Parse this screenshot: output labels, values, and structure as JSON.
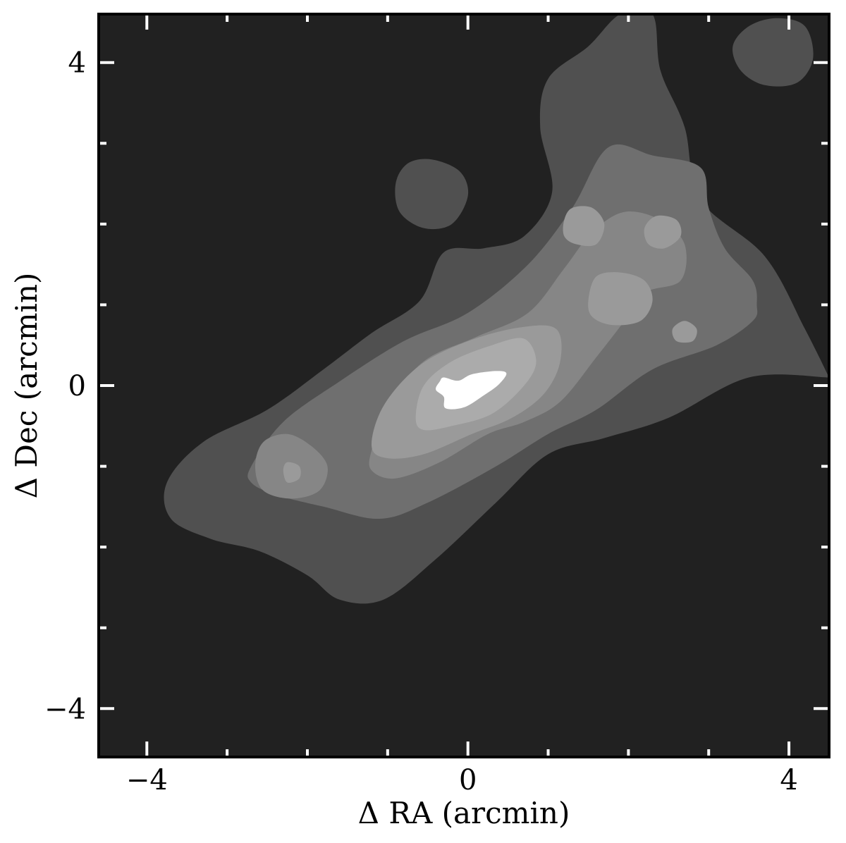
{
  "chart_data": {
    "type": "contour",
    "xlabel": "Δ RA (arcmin)",
    "ylabel": "Δ Dec (arcmin)",
    "xlim": [
      -4.6,
      4.5
    ],
    "ylim": [
      -4.6,
      4.6
    ],
    "x_major_ticks": [
      -4,
      0,
      4
    ],
    "x_major_tick_labels": [
      "−4",
      "0",
      "4"
    ],
    "y_major_ticks": [
      -4,
      0,
      4
    ],
    "y_major_tick_labels": [
      "−4",
      "0",
      "4"
    ],
    "minor_tick_step": 1,
    "grid": false,
    "background_color": "#212121",
    "level_colors": [
      "#212121",
      "#505050",
      "#6f6f6f",
      "#868686",
      "#9a9a9a",
      "#ababab",
      "#ffffff"
    ],
    "regions": [
      {
        "level": 1,
        "points": [
          [
            -3.75,
            -1.2
          ],
          [
            -3.3,
            -0.7
          ],
          [
            -2.5,
            -0.3
          ],
          [
            -1.8,
            0.2
          ],
          [
            -1.2,
            0.65
          ],
          [
            -0.6,
            1.05
          ],
          [
            -0.3,
            1.65
          ],
          [
            0.2,
            1.7
          ],
          [
            0.7,
            1.85
          ],
          [
            1.05,
            2.4
          ],
          [
            0.9,
            3.2
          ],
          [
            1.0,
            3.8
          ],
          [
            1.5,
            4.2
          ],
          [
            1.9,
            4.6
          ],
          [
            2.3,
            4.6
          ],
          [
            2.4,
            3.9
          ],
          [
            2.7,
            3.2
          ],
          [
            2.9,
            2.3
          ],
          [
            3.7,
            1.6
          ],
          [
            4.2,
            0.7
          ],
          [
            4.5,
            0.1
          ],
          [
            4.5,
            0.1
          ],
          [
            3.5,
            0.1
          ],
          [
            2.5,
            -0.4
          ],
          [
            1.7,
            -0.65
          ],
          [
            1.0,
            -0.85
          ],
          [
            0.35,
            -1.45
          ],
          [
            -0.4,
            -2.15
          ],
          [
            -1.05,
            -2.65
          ],
          [
            -1.6,
            -2.65
          ],
          [
            -2.0,
            -2.35
          ],
          [
            -2.6,
            -2.05
          ],
          [
            -3.2,
            -1.9
          ],
          [
            -3.7,
            -1.65
          ]
        ]
      },
      {
        "level": 1,
        "points": [
          [
            -0.9,
            2.5
          ],
          [
            -0.75,
            2.75
          ],
          [
            -0.45,
            2.8
          ],
          [
            -0.1,
            2.65
          ],
          [
            0.0,
            2.35
          ],
          [
            -0.2,
            2.0
          ],
          [
            -0.55,
            1.95
          ],
          [
            -0.85,
            2.15
          ]
        ]
      },
      {
        "level": 1,
        "points": [
          [
            3.3,
            4.2
          ],
          [
            3.5,
            4.45
          ],
          [
            3.85,
            4.55
          ],
          [
            4.2,
            4.45
          ],
          [
            4.3,
            4.05
          ],
          [
            4.1,
            3.75
          ],
          [
            3.7,
            3.72
          ],
          [
            3.4,
            3.9
          ]
        ]
      },
      {
        "level": 2,
        "points": [
          [
            -2.7,
            -1.0
          ],
          [
            -2.3,
            -0.45
          ],
          [
            -1.6,
            0.05
          ],
          [
            -0.8,
            0.55
          ],
          [
            0.0,
            0.9
          ],
          [
            0.75,
            1.5
          ],
          [
            1.3,
            2.2
          ],
          [
            1.75,
            2.95
          ],
          [
            2.3,
            2.85
          ],
          [
            2.9,
            2.7
          ],
          [
            3.0,
            2.2
          ],
          [
            3.2,
            1.7
          ],
          [
            3.55,
            1.3
          ],
          [
            3.6,
            1.0
          ],
          [
            3.55,
            0.8
          ],
          [
            3.1,
            0.5
          ],
          [
            2.3,
            0.2
          ],
          [
            1.6,
            -0.3
          ],
          [
            1.0,
            -0.6
          ],
          [
            0.35,
            -1.0
          ],
          [
            -0.5,
            -1.45
          ],
          [
            -1.1,
            -1.65
          ],
          [
            -1.8,
            -1.5
          ],
          [
            -2.4,
            -1.35
          ],
          [
            -2.7,
            -1.2
          ]
        ]
      },
      {
        "level": 3,
        "points": [
          [
            -1.2,
            -0.8
          ],
          [
            -1.0,
            -0.25
          ],
          [
            -0.55,
            0.3
          ],
          [
            0.1,
            0.6
          ],
          [
            0.75,
            0.9
          ],
          [
            1.2,
            1.45
          ],
          [
            1.55,
            1.9
          ],
          [
            1.95,
            2.15
          ],
          [
            2.4,
            2.05
          ],
          [
            2.7,
            1.75
          ],
          [
            2.65,
            1.3
          ],
          [
            2.2,
            1.15
          ],
          [
            1.95,
            0.8
          ],
          [
            1.6,
            0.35
          ],
          [
            1.15,
            -0.2
          ],
          [
            0.7,
            -0.45
          ],
          [
            0.25,
            -0.6
          ],
          [
            -0.35,
            -0.95
          ],
          [
            -0.9,
            -1.15
          ],
          [
            -1.2,
            -1.05
          ]
        ]
      },
      {
        "level": 3,
        "points": [
          [
            -2.65,
            -1.0
          ],
          [
            -2.55,
            -0.7
          ],
          [
            -2.25,
            -0.6
          ],
          [
            -1.95,
            -0.75
          ],
          [
            -1.75,
            -1.0
          ],
          [
            -1.85,
            -1.3
          ],
          [
            -2.2,
            -1.4
          ],
          [
            -2.55,
            -1.3
          ]
        ]
      },
      {
        "level": 4,
        "points": [
          [
            -1.2,
            -0.75
          ],
          [
            -1.05,
            -0.25
          ],
          [
            -0.6,
            0.25
          ],
          [
            0.0,
            0.55
          ],
          [
            0.65,
            0.72
          ],
          [
            1.1,
            0.7
          ],
          [
            1.15,
            0.3
          ],
          [
            0.95,
            -0.1
          ],
          [
            0.55,
            -0.4
          ],
          [
            0.05,
            -0.6
          ],
          [
            -0.55,
            -0.85
          ],
          [
            -1.0,
            -0.9
          ]
        ]
      },
      {
        "level": 4,
        "points": [
          [
            1.5,
            1.05
          ],
          [
            1.6,
            1.35
          ],
          [
            1.9,
            1.4
          ],
          [
            2.2,
            1.3
          ],
          [
            2.3,
            1.05
          ],
          [
            2.15,
            0.8
          ],
          [
            1.8,
            0.75
          ],
          [
            1.55,
            0.85
          ]
        ]
      },
      {
        "level": 4,
        "points": [
          [
            1.2,
            2.05
          ],
          [
            1.3,
            2.2
          ],
          [
            1.55,
            2.2
          ],
          [
            1.7,
            2.0
          ],
          [
            1.6,
            1.75
          ],
          [
            1.35,
            1.75
          ],
          [
            1.2,
            1.85
          ]
        ]
      },
      {
        "level": 4,
        "points": [
          [
            2.2,
            1.95
          ],
          [
            2.35,
            2.1
          ],
          [
            2.6,
            2.05
          ],
          [
            2.65,
            1.85
          ],
          [
            2.45,
            1.7
          ],
          [
            2.25,
            1.75
          ]
        ]
      },
      {
        "level": 4,
        "points": [
          [
            -2.3,
            -1.05
          ],
          [
            -2.25,
            -0.95
          ],
          [
            -2.1,
            -1.0
          ],
          [
            -2.1,
            -1.15
          ],
          [
            -2.25,
            -1.2
          ]
        ]
      },
      {
        "level": 4,
        "points": [
          [
            2.55,
            0.7
          ],
          [
            2.7,
            0.8
          ],
          [
            2.85,
            0.7
          ],
          [
            2.8,
            0.55
          ],
          [
            2.6,
            0.55
          ]
        ]
      },
      {
        "level": 5,
        "points": [
          [
            -0.65,
            -0.4
          ],
          [
            -0.55,
            0.0
          ],
          [
            -0.2,
            0.3
          ],
          [
            0.3,
            0.5
          ],
          [
            0.7,
            0.58
          ],
          [
            0.85,
            0.3
          ],
          [
            0.7,
            0.0
          ],
          [
            0.3,
            -0.35
          ],
          [
            -0.2,
            -0.5
          ],
          [
            -0.55,
            -0.55
          ]
        ]
      },
      {
        "level": 6,
        "points": [
          [
            -0.35,
            0.05
          ],
          [
            -0.3,
            0.1
          ],
          [
            -0.12,
            0.06
          ],
          [
            0.05,
            0.14
          ],
          [
            0.35,
            0.18
          ],
          [
            0.48,
            0.15
          ],
          [
            0.38,
            0.01
          ],
          [
            0.2,
            -0.12
          ],
          [
            -0.05,
            -0.27
          ],
          [
            -0.28,
            -0.28
          ],
          [
            -0.3,
            -0.14
          ],
          [
            -0.4,
            -0.05
          ]
        ]
      }
    ]
  }
}
